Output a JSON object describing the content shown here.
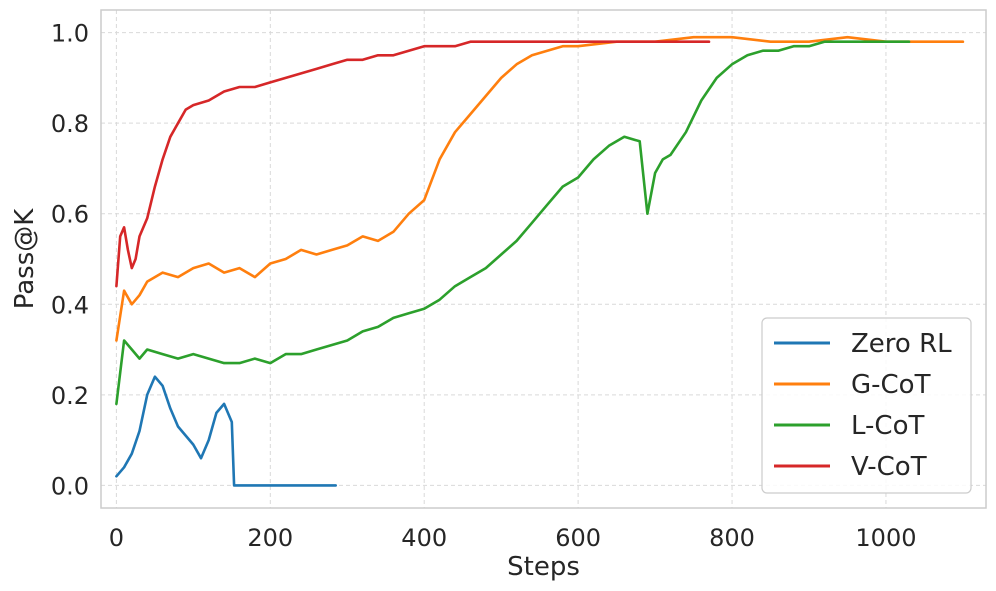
{
  "chart_data": {
    "type": "line",
    "xlabel": "Steps",
    "ylabel": "Pass@K",
    "xlim": [
      -20,
      1130
    ],
    "ylim": [
      -0.05,
      1.05
    ],
    "xticks": [
      0,
      200,
      400,
      600,
      800,
      1000
    ],
    "yticks": [
      0.0,
      0.2,
      0.4,
      0.6,
      0.8,
      1.0
    ],
    "xtick_labels": [
      "0",
      "200",
      "400",
      "600",
      "800",
      "1000"
    ],
    "ytick_labels": [
      "0.0",
      "0.2",
      "0.4",
      "0.6",
      "0.8",
      "1.0"
    ],
    "grid": true,
    "legend_position": "lower-right",
    "series": [
      {
        "name": "Zero RL",
        "color": "#1f77b4",
        "x": [
          0,
          10,
          20,
          30,
          40,
          50,
          60,
          70,
          80,
          90,
          100,
          110,
          120,
          130,
          140,
          150,
          153,
          160,
          170,
          180,
          200,
          220,
          250,
          285
        ],
        "y": [
          0.02,
          0.04,
          0.07,
          0.12,
          0.2,
          0.24,
          0.22,
          0.17,
          0.13,
          0.11,
          0.09,
          0.06,
          0.1,
          0.16,
          0.18,
          0.14,
          0.0,
          0.0,
          0.0,
          0.0,
          0.0,
          0.0,
          0.0,
          0.0
        ]
      },
      {
        "name": "G-CoT",
        "color": "#ff7f0e",
        "x": [
          0,
          10,
          20,
          30,
          40,
          60,
          80,
          100,
          120,
          140,
          160,
          180,
          200,
          220,
          240,
          260,
          280,
          300,
          320,
          340,
          360,
          380,
          400,
          420,
          440,
          460,
          480,
          500,
          520,
          540,
          560,
          580,
          600,
          650,
          700,
          750,
          800,
          850,
          900,
          950,
          1000,
          1050,
          1100
        ],
        "y": [
          0.32,
          0.43,
          0.4,
          0.42,
          0.45,
          0.47,
          0.46,
          0.48,
          0.49,
          0.47,
          0.48,
          0.46,
          0.49,
          0.5,
          0.52,
          0.51,
          0.52,
          0.53,
          0.55,
          0.54,
          0.56,
          0.6,
          0.63,
          0.72,
          0.78,
          0.82,
          0.86,
          0.9,
          0.93,
          0.95,
          0.96,
          0.97,
          0.97,
          0.98,
          0.98,
          0.99,
          0.99,
          0.98,
          0.98,
          0.99,
          0.98,
          0.98,
          0.98
        ]
      },
      {
        "name": "L-CoT",
        "color": "#2ca02c",
        "x": [
          0,
          10,
          20,
          30,
          40,
          60,
          80,
          100,
          120,
          140,
          160,
          180,
          200,
          220,
          240,
          260,
          280,
          300,
          320,
          340,
          360,
          380,
          400,
          420,
          440,
          460,
          480,
          500,
          520,
          540,
          560,
          580,
          600,
          620,
          640,
          660,
          680,
          690,
          700,
          710,
          720,
          740,
          760,
          780,
          800,
          820,
          840,
          860,
          880,
          900,
          920,
          950,
          1000,
          1030
        ],
        "y": [
          0.18,
          0.32,
          0.3,
          0.28,
          0.3,
          0.29,
          0.28,
          0.29,
          0.28,
          0.27,
          0.27,
          0.28,
          0.27,
          0.29,
          0.29,
          0.3,
          0.31,
          0.32,
          0.34,
          0.35,
          0.37,
          0.38,
          0.39,
          0.41,
          0.44,
          0.46,
          0.48,
          0.51,
          0.54,
          0.58,
          0.62,
          0.66,
          0.68,
          0.72,
          0.75,
          0.77,
          0.76,
          0.6,
          0.69,
          0.72,
          0.73,
          0.78,
          0.85,
          0.9,
          0.93,
          0.95,
          0.96,
          0.96,
          0.97,
          0.97,
          0.98,
          0.98,
          0.98,
          0.98
        ]
      },
      {
        "name": "V-CoT",
        "color": "#d62728",
        "x": [
          0,
          5,
          10,
          15,
          20,
          25,
          30,
          40,
          50,
          60,
          70,
          80,
          90,
          100,
          120,
          140,
          160,
          180,
          200,
          220,
          240,
          260,
          280,
          300,
          320,
          340,
          360,
          380,
          400,
          420,
          440,
          460,
          480,
          500,
          550,
          600,
          650,
          700,
          770
        ],
        "y": [
          0.44,
          0.55,
          0.57,
          0.52,
          0.48,
          0.5,
          0.55,
          0.59,
          0.66,
          0.72,
          0.77,
          0.8,
          0.83,
          0.84,
          0.85,
          0.87,
          0.88,
          0.88,
          0.89,
          0.9,
          0.91,
          0.92,
          0.93,
          0.94,
          0.94,
          0.95,
          0.95,
          0.96,
          0.97,
          0.97,
          0.97,
          0.98,
          0.98,
          0.98,
          0.98,
          0.98,
          0.98,
          0.98,
          0.98
        ]
      }
    ]
  }
}
